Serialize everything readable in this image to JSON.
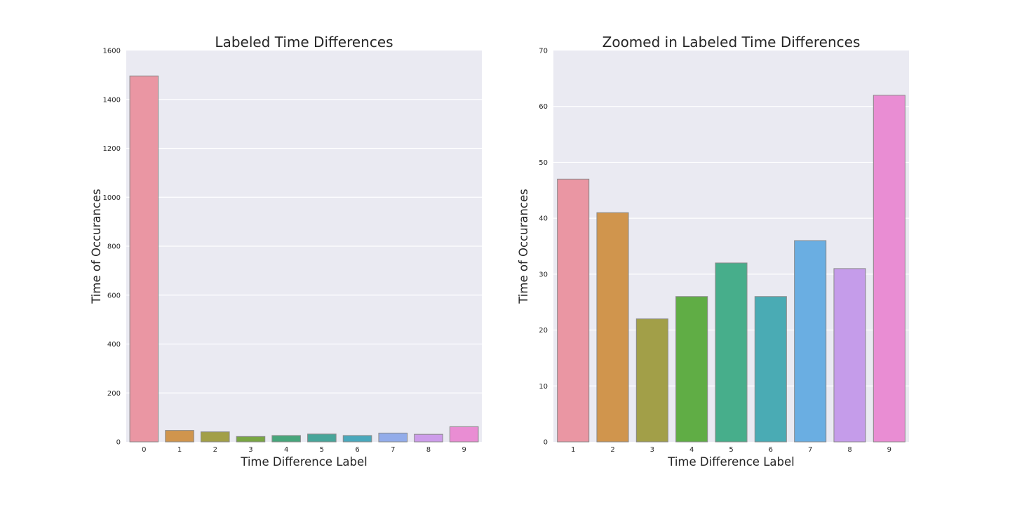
{
  "chart_data": [
    {
      "type": "bar",
      "title": "Labeled Time Differences",
      "xlabel": "Time Difference Label",
      "ylabel": "Time of Occurances",
      "categories": [
        "0",
        "1",
        "2",
        "3",
        "4",
        "5",
        "6",
        "7",
        "8",
        "9"
      ],
      "values": [
        1496,
        47,
        41,
        22,
        26,
        32,
        26,
        36,
        31,
        62
      ],
      "ylim": [
        0,
        1600
      ],
      "yticks": [
        0,
        200,
        400,
        600,
        800,
        1000,
        1200,
        1400,
        1600
      ],
      "colors": [
        "#ea96a3",
        "#d0954d",
        "#a29f48",
        "#79a544",
        "#47a57b",
        "#48a59a",
        "#4aa8bc",
        "#93acea",
        "#cd9cea",
        "#e98dd3"
      ],
      "grid": true,
      "legend": "none"
    },
    {
      "type": "bar",
      "title": "Zoomed in Labeled Time Differences",
      "xlabel": "Time Difference Label",
      "ylabel": "Time of Occurances",
      "categories": [
        "1",
        "2",
        "3",
        "4",
        "5",
        "6",
        "7",
        "8",
        "9"
      ],
      "values": [
        47,
        41,
        22,
        26,
        32,
        26,
        36,
        31,
        62
      ],
      "ylim": [
        0,
        70
      ],
      "yticks": [
        0,
        10,
        20,
        30,
        40,
        50,
        60,
        70
      ],
      "colors": [
        "#ea96a3",
        "#d0954d",
        "#a29f48",
        "#60ad45",
        "#47ae8b",
        "#4aabb4",
        "#6aaee2",
        "#c59cea",
        "#e98dd3"
      ],
      "grid": true,
      "legend": "none"
    }
  ]
}
